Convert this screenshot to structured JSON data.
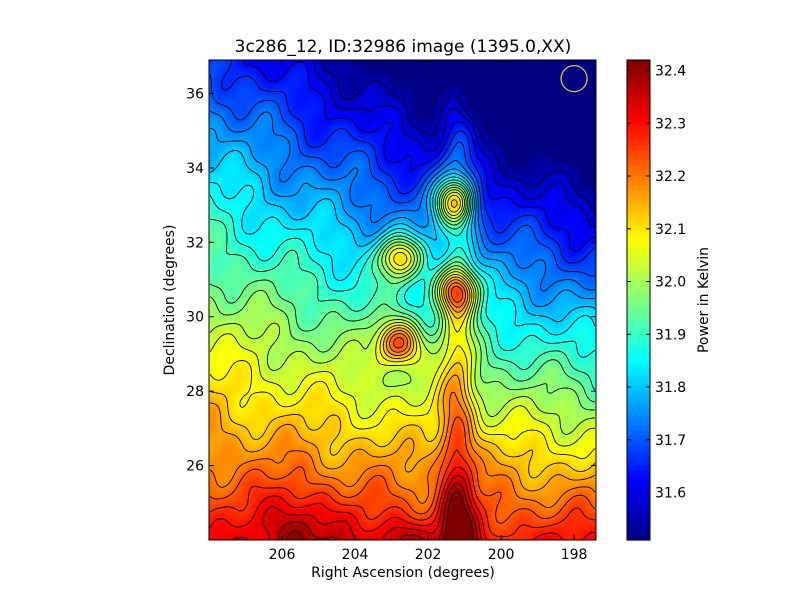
{
  "chart_data": {
    "type": "heatmap",
    "title": "3c286_12, ID:32986 image (1395.0,XX)",
    "xlabel": "Right Ascension (degrees)",
    "ylabel": "Declination (degrees)",
    "colorbar_label": "Power in Kelvin",
    "colormap": "jet",
    "xlim": [
      208.0,
      197.4
    ],
    "ylim": [
      24.0,
      36.9
    ],
    "clim": [
      31.51,
      32.42
    ],
    "x_ticks": [
      206,
      204,
      202,
      200,
      198
    ],
    "x_tick_labels": [
      "206",
      "204",
      "202",
      "200",
      "198"
    ],
    "y_ticks": [
      26,
      28,
      30,
      32,
      34,
      36
    ],
    "y_tick_labels": [
      "26",
      "28",
      "30",
      "32",
      "34",
      "36"
    ],
    "colorbar_ticks": [
      31.6,
      31.7,
      31.8,
      31.9,
      32.0,
      32.1,
      32.2,
      32.3,
      32.4
    ],
    "colorbar_tick_labels": [
      "31.6",
      "31.7",
      "31.8",
      "31.9",
      "32.0",
      "32.1",
      "32.2",
      "32.3",
      "32.4"
    ],
    "contours": "black",
    "beam_marker": {
      "ra": 198.0,
      "dec": 36.4,
      "color": "#e0c040"
    },
    "sources": [
      {
        "ra": 202.8,
        "dec": 31.6,
        "peak": 32.4
      },
      {
        "ra": 202.8,
        "dec": 29.3,
        "peak": 32.42
      },
      {
        "ra": 201.3,
        "dec": 33.1,
        "peak": 32.38
      },
      {
        "ra": 201.2,
        "dec": 30.7,
        "peak": 32.3
      }
    ]
  }
}
